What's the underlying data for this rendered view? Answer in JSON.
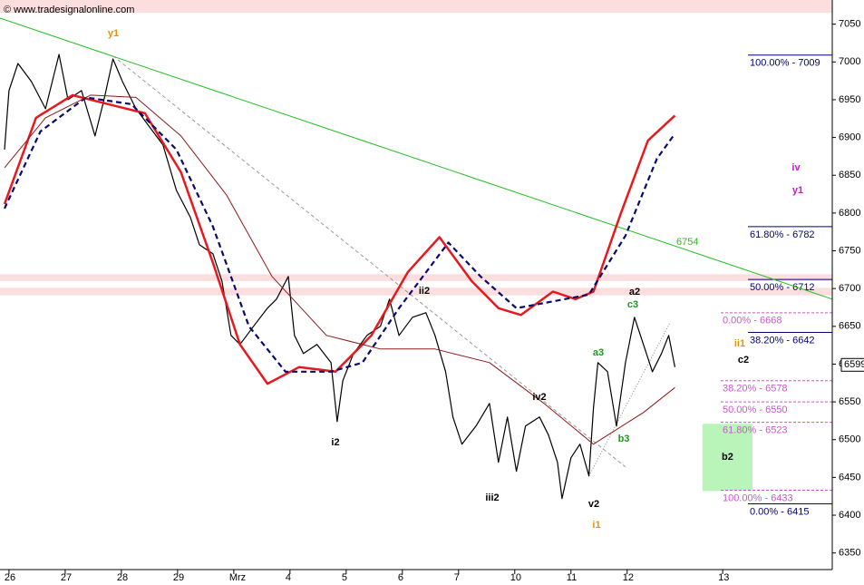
{
  "chart_data": {
    "type": "line",
    "watermark": "© www.tradesignalonline.com",
    "xlim": [
      -0.16,
      14.65
    ],
    "ylim": [
      6328,
      7082
    ],
    "xticks": [
      {
        "value": 0,
        "label": "26"
      },
      {
        "value": 1,
        "label": "27"
      },
      {
        "value": 2,
        "label": "28"
      },
      {
        "value": 3,
        "label": "29"
      },
      {
        "value": 4,
        "label": "Mrz"
      },
      {
        "value": 5,
        "label": "4"
      },
      {
        "value": 6,
        "label": "5"
      },
      {
        "value": 7,
        "label": "6"
      },
      {
        "value": 8,
        "label": "7"
      },
      {
        "value": 9,
        "label": "10"
      },
      {
        "value": 10,
        "label": "11"
      },
      {
        "value": 11,
        "label": "12"
      },
      {
        "value": 12.7,
        "label": "13"
      }
    ],
    "yticks": [
      6350,
      6400,
      6450,
      6500,
      6550,
      6600,
      6650,
      6700,
      6750,
      6800,
      6850,
      6900,
      6950,
      7000,
      7050
    ],
    "series": [
      {
        "color": "#000000",
        "width": 1.2,
        "dash": false,
        "x": [
          -0.08,
          0,
          0.16,
          0.4,
          0.65,
          0.89,
          1.05,
          1.29,
          1.53,
          1.69,
          1.85,
          2.02,
          2.26,
          2.5,
          2.74,
          2.98,
          3.23,
          3.39,
          3.63,
          3.79,
          3.95,
          4.11,
          4.35,
          4.6,
          4.76,
          4.97,
          5.08,
          5.24,
          5.48,
          5.73,
          5.84,
          5.94,
          6.13,
          6.37,
          6.61,
          6.77,
          6.94,
          7.18,
          7.42,
          7.58,
          7.77,
          7.9,
          8.06,
          8.31,
          8.55,
          8.71,
          8.87,
          9.03,
          9.19,
          9.44,
          9.6,
          9.76,
          9.84,
          10,
          10.16,
          10.32,
          10.4,
          10.48,
          10.65,
          10.81,
          10.97,
          11.13,
          11.29,
          11.45,
          11.61,
          11.74,
          11.85
        ],
        "values": [
          6884,
          6962,
          6998,
          6974,
          6938,
          7010,
          6950,
          6962,
          6902,
          6950,
          7004,
          6974,
          6938,
          6914,
          6890,
          6830,
          6794,
          6758,
          6746,
          6710,
          6638,
          6626,
          6650,
          6674,
          6686,
          6716,
          6638,
          6614,
          6626,
          6602,
          6524,
          6578,
          6614,
          6638,
          6650,
          6686,
          6638,
          6662,
          6668,
          6638,
          6590,
          6530,
          6494,
          6518,
          6548,
          6470,
          6530,
          6458,
          6518,
          6530,
          6506,
          6470,
          6422,
          6476,
          6494,
          6452,
          6542,
          6602,
          6590,
          6518,
          6602,
          6662,
          6626,
          6590,
          6614,
          6638,
          6596
        ]
      },
      {
        "color": "#e8191e",
        "width": 2.5,
        "dash": false,
        "x": [
          -0.08,
          0.48,
          1.13,
          1.77,
          2.42,
          3.06,
          3.63,
          4.11,
          4.6,
          5.16,
          5.81,
          6.45,
          7.1,
          7.66,
          8.23,
          8.71,
          9.11,
          9.68,
          10.08,
          10.4,
          10.89,
          11.37,
          11.85
        ],
        "values": [
          6812,
          6926,
          6956,
          6944,
          6932,
          6854,
          6734,
          6626,
          6574,
          6596,
          6590,
          6638,
          6722,
          6768,
          6710,
          6674,
          6665,
          6696,
          6686,
          6696,
          6800,
          6896,
          6929
        ]
      },
      {
        "color": "#0a0a6e",
        "width": 2.2,
        "dash": true,
        "x": [
          -0.08,
          0.56,
          1.37,
          2.18,
          2.98,
          3.63,
          4.27,
          4.92,
          5.73,
          6.29,
          6.94,
          7.82,
          8.39,
          9.03,
          9.68,
          10.32,
          10.97,
          11.53,
          11.85
        ],
        "values": [
          6806,
          6908,
          6953,
          6944,
          6884,
          6782,
          6650,
          6590,
          6590,
          6602,
          6674,
          6761,
          6716,
          6674,
          6683,
          6692,
          6770,
          6872,
          6905
        ]
      },
      {
        "color": "#8b1a1a",
        "width": 1,
        "dash": false,
        "x": [
          -0.08,
          0.65,
          1.45,
          2.26,
          3.06,
          3.87,
          4.68,
          5.65,
          6.61,
          7.58,
          8.55,
          9.52,
          10.4,
          11.29,
          11.85
        ],
        "values": [
          6860,
          6926,
          6956,
          6953,
          6902,
          6824,
          6716,
          6638,
          6620,
          6620,
          6602,
          6548,
          6494,
          6536,
          6569
        ]
      }
    ],
    "trendlines": [
      {
        "color": "#22c022",
        "x": [
          -0.16,
          14.65
        ],
        "values": [
          7058,
          6686
        ],
        "label": 6754
      },
      {
        "color": "#999999",
        "x": [
          1.85,
          10.97
        ],
        "values": [
          7008,
          6464
        ]
      },
      {
        "color": "#888888",
        "x": [
          10.32,
          11.77
        ],
        "values": [
          6452,
          6656
        ]
      }
    ],
    "zones": [
      [
        7065,
        7082
      ],
      [
        6710,
        6719
      ],
      [
        6691,
        6701
      ]
    ],
    "zone_color": "#fcdede",
    "box": {
      "label": "b2",
      "color": "#b9f5b9",
      "x": [
        12.34,
        13.23
      ],
      "y": [
        6432,
        6521
      ]
    },
    "fib_groups": [
      {
        "color": "#000080",
        "levels": [
          {
            "value": 7009,
            "label": "100.00% - 7009"
          },
          {
            "value": 6782,
            "label": "61.80% - 6782"
          },
          {
            "value": 6712,
            "label": "50.00% - 6712"
          },
          {
            "value": 6642,
            "label": "38.20% - 6642"
          },
          {
            "value": 6415,
            "label": "0.00% - 6415"
          }
        ]
      },
      {
        "color": "#cc55cc",
        "levels": [
          {
            "value": 6668,
            "label": "0.00% - 6668"
          },
          {
            "value": 6578,
            "label": "38.20% - 6578"
          },
          {
            "value": 6550,
            "label": "50.00% - 6550"
          },
          {
            "value": 6523,
            "label": "61.80% - 6523"
          },
          {
            "value": 6433,
            "label": "100.00% - 6433"
          }
        ]
      }
    ],
    "wave_labels": [
      {
        "text": "y1",
        "color": "#e69500"
      },
      {
        "text": "i2",
        "color": "#000000"
      },
      {
        "text": "ii2",
        "color": "#000000"
      },
      {
        "text": "iii2",
        "color": "#000000"
      },
      {
        "text": "iv2",
        "color": "#000000"
      },
      {
        "text": "v2",
        "color": "#000000"
      },
      {
        "text": "i1",
        "color": "#e69500"
      },
      {
        "text": "a3",
        "color": "#1a9a1a"
      },
      {
        "text": "b3",
        "color": "#1a9a1a"
      },
      {
        "text": "c3",
        "color": "#1a9a1a"
      },
      {
        "text": "a2",
        "color": "#000000"
      },
      {
        "text": "ii1",
        "color": "#e69500"
      },
      {
        "text": "c2",
        "color": "#000000"
      },
      {
        "text": "iv",
        "color": "#c020c0"
      },
      {
        "text": "y1",
        "color": "#c020c0"
      }
    ],
    "last_price": 6599
  }
}
